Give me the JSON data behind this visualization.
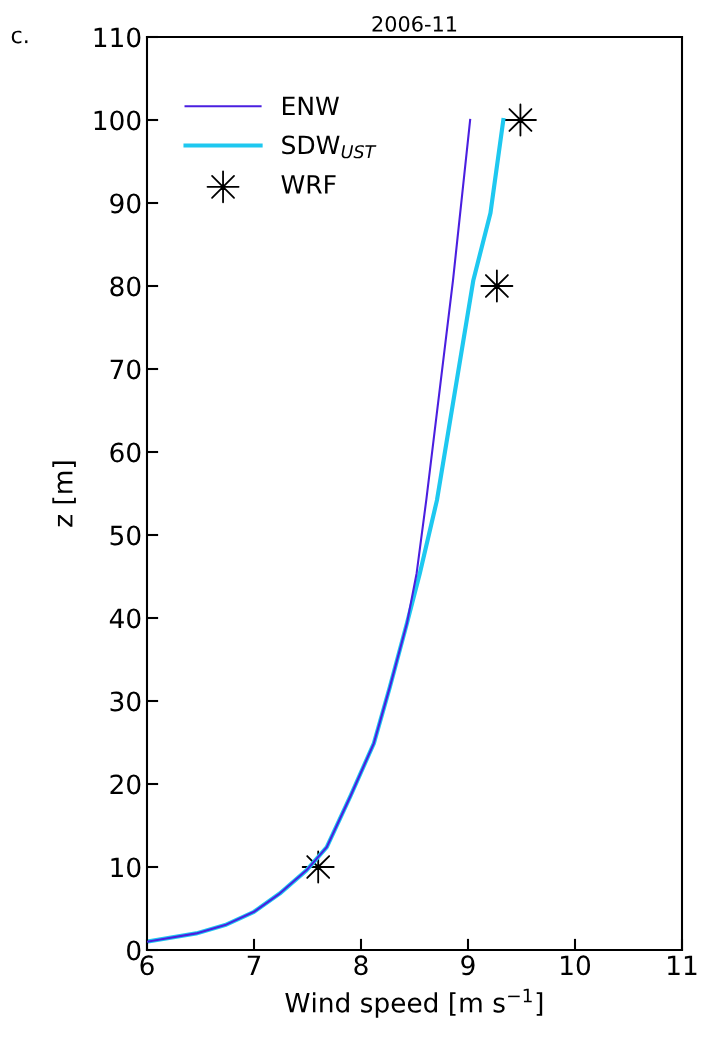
{
  "chart_data": {
    "type": "line",
    "title": "2006-11",
    "xlabel": "Wind speed [m s$^{−1}$]",
    "ylabel": "z [m]",
    "annotations": [
      "c."
    ],
    "series": [
      {
        "name": "ENW",
        "color": "#4a1fe0",
        "x": [
          6.0,
          6.46,
          6.73,
          7.0,
          7.24,
          7.49,
          7.68,
          7.9,
          8.12,
          8.27,
          8.43,
          8.52,
          8.61,
          8.86,
          9.02
        ],
        "values": [
          1.0,
          2.0,
          3.0,
          4.6,
          6.8,
          9.6,
          12.4,
          18.5,
          24.9,
          31.7,
          39.4,
          45.4,
          54.2,
          80.7,
          100
        ]
      },
      {
        "name": "SDW$_{UST}$",
        "color": "#1ec8f0",
        "x": [
          6.0,
          6.46,
          6.73,
          7.0,
          7.24,
          7.49,
          7.68,
          7.9,
          8.12,
          8.27,
          8.43,
          8.55,
          8.71,
          9.05,
          9.21,
          9.33
        ],
        "values": [
          1.0,
          2.0,
          3.0,
          4.6,
          6.8,
          9.6,
          12.4,
          18.5,
          24.9,
          31.7,
          39.4,
          45.4,
          54.2,
          80.7,
          88.8,
          100
        ]
      },
      {
        "name": "WRF",
        "type": "scatter",
        "color": "#000000",
        "marker": "star",
        "x": [
          7.6,
          9.27,
          9.49
        ],
        "values": [
          10,
          80,
          100
        ]
      }
    ],
    "xlim": [
      6,
      11
    ],
    "xticks": [
      6,
      7,
      8,
      9,
      10,
      11
    ],
    "ylim": [
      0,
      110
    ],
    "yticks": [
      0,
      10,
      20,
      30,
      40,
      50,
      60,
      70,
      80,
      90,
      100,
      110
    ],
    "grid": false,
    "legend": "top left"
  }
}
